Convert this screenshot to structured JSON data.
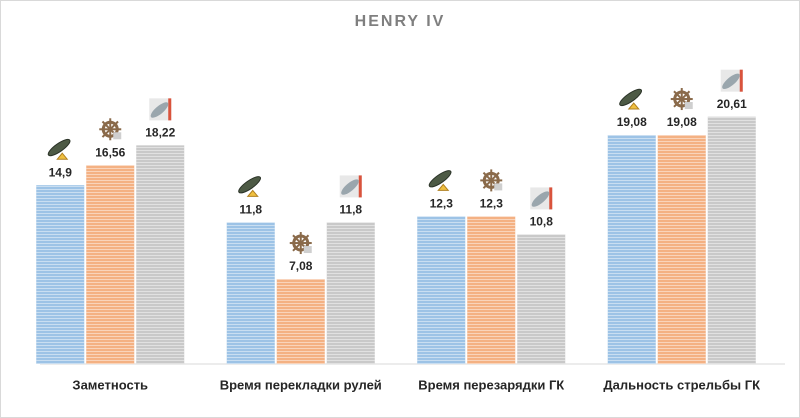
{
  "chart_data": {
    "type": "bar",
    "title": "HENRY IV",
    "categories": [
      "Заметность",
      "Время перекладки рулей",
      "Время перезарядки ГК",
      "Дальность стрельбы ГК"
    ],
    "series": [
      {
        "color": "#9dc3e6",
        "values": [
          14.9,
          11.8,
          12.3,
          19.08
        ],
        "value_labels": [
          "14,9",
          "11,8",
          "12,3",
          "19,08"
        ]
      },
      {
        "color": "#f4b183",
        "values": [
          16.56,
          7.08,
          12.3,
          19.08
        ],
        "value_labels": [
          "16,56",
          "7,08",
          "12,3",
          "19,08"
        ]
      },
      {
        "color": "#c9c9c9",
        "values": [
          18.22,
          11.8,
          10.8,
          20.61
        ],
        "value_labels": [
          "18,22",
          "11,8",
          "10,8",
          "20,61"
        ]
      }
    ],
    "ylim": [
      0,
      27
    ]
  }
}
